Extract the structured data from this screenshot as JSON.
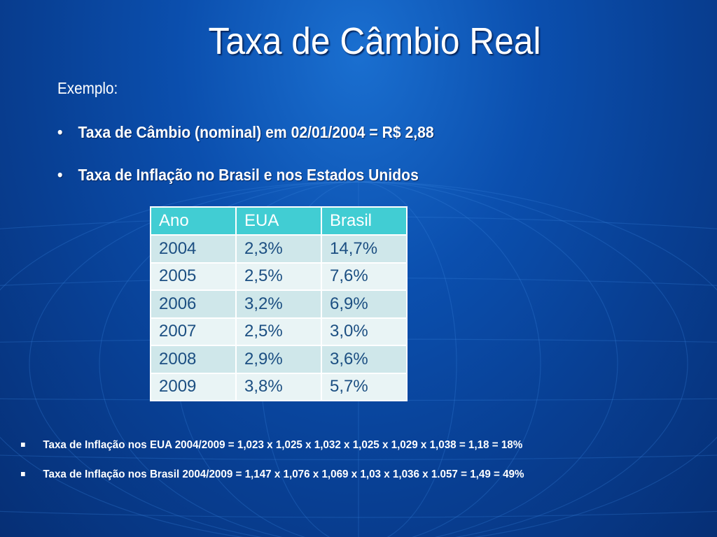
{
  "title": "Taxa de Câmbio Real",
  "subtitle": "Exemplo:",
  "bullets": [
    "Taxa de Câmbio (nominal) em 02/01/2004 = R$ 2,88",
    "Taxa de Inflação no Brasil e nos Estados Unidos"
  ],
  "bullet_glyph": "•",
  "table": {
    "headers": [
      "Ano",
      "EUA",
      "Brasil"
    ],
    "rows": [
      [
        "2004",
        "2,3%",
        "14,7%"
      ],
      [
        "2005",
        "2,5%",
        "7,6%"
      ],
      [
        "2006",
        "3,2%",
        "6,9%"
      ],
      [
        "2007",
        "2,5%",
        "3,0%"
      ],
      [
        "2008",
        "2,9%",
        "3,6%"
      ],
      [
        "2009",
        "3,8%",
        "5,7%"
      ]
    ]
  },
  "notes": [
    "Taxa de Inflação nos EUA 2004/2009 = 1,023 x 1,025 x 1,032 x 1,025 x 1,029 x 1,038 =  1,18 = 18%",
    "Taxa de Inflação nos Brasil 2004/2009 = 1,147 x 1,076 x 1,069 x  1,03 x 1,036 x 1.057 = 1,49 = 49%"
  ],
  "colors": {
    "background": "#0b4fae",
    "header_fill": "#41cdd3",
    "row_odd": "#cfe7ea",
    "row_even": "#e9f4f5",
    "cell_text": "#1c4f82"
  }
}
